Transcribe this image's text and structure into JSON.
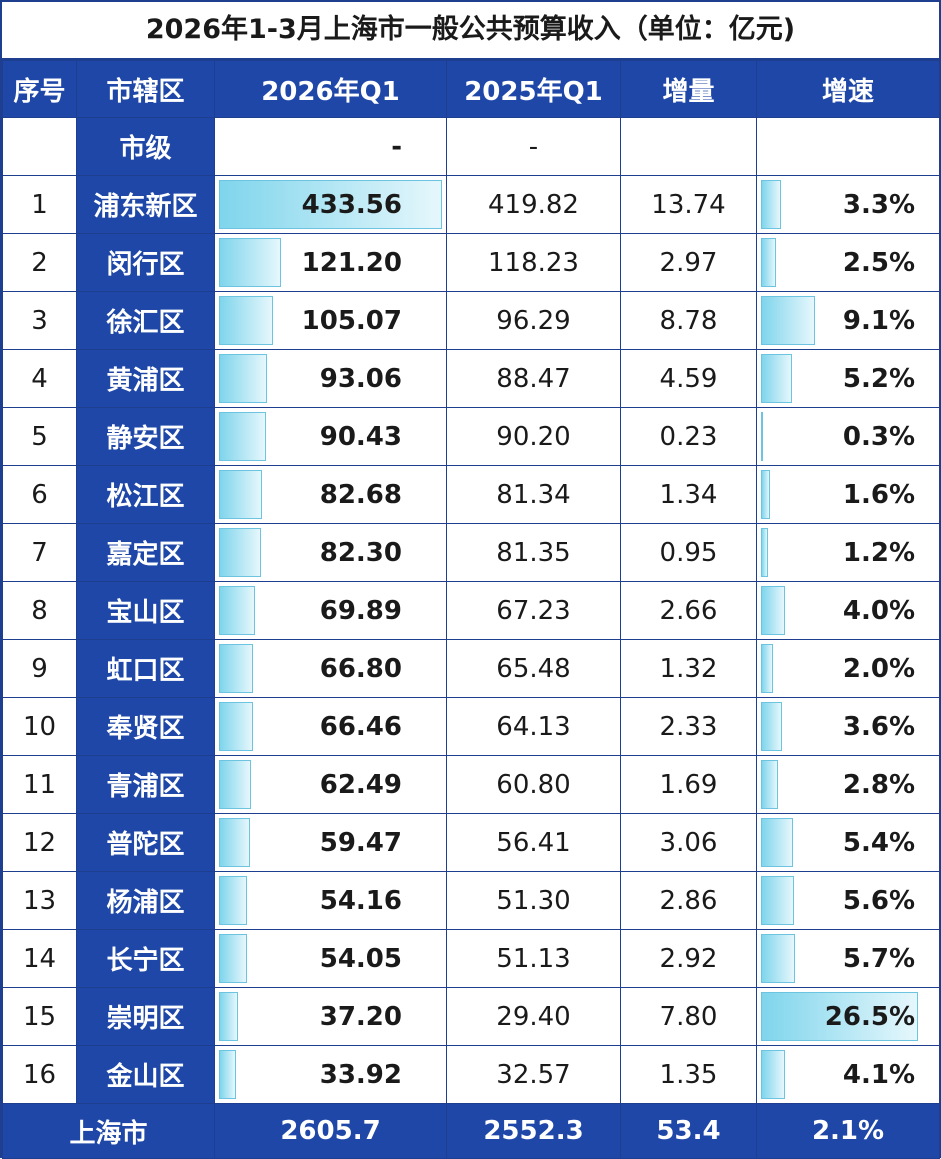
{
  "title": "2026年1-3月上海市一般公共预算收入（单位：亿元)",
  "headers": [
    "序号",
    "市辖区",
    "2026年Q1",
    "2025年Q1",
    "增量",
    "增速"
  ],
  "city_row": {
    "name": "市级",
    "q1_2026": "-",
    "q1_2025": "-"
  },
  "rows": [
    {
      "seq": "1",
      "name": "浦东新区",
      "q1_2026": "433.56",
      "q1_2025": "419.82",
      "increase": "13.74",
      "growth": "3.3%",
      "q1_2026_value": 433.56,
      "growth_value": 3.3
    },
    {
      "seq": "2",
      "name": "闵行区",
      "q1_2026": "121.20",
      "q1_2025": "118.23",
      "increase": "2.97",
      "growth": "2.5%",
      "q1_2026_value": 121.2,
      "growth_value": 2.5
    },
    {
      "seq": "3",
      "name": "徐汇区",
      "q1_2026": "105.07",
      "q1_2025": "96.29",
      "increase": "8.78",
      "growth": "9.1%",
      "q1_2026_value": 105.07,
      "growth_value": 9.1
    },
    {
      "seq": "4",
      "name": "黄浦区",
      "q1_2026": "93.06",
      "q1_2025": "88.47",
      "increase": "4.59",
      "growth": "5.2%",
      "q1_2026_value": 93.06,
      "growth_value": 5.2
    },
    {
      "seq": "5",
      "name": "静安区",
      "q1_2026": "90.43",
      "q1_2025": "90.20",
      "increase": "0.23",
      "growth": "0.3%",
      "q1_2026_value": 90.43,
      "growth_value": 0.3
    },
    {
      "seq": "6",
      "name": "松江区",
      "q1_2026": "82.68",
      "q1_2025": "81.34",
      "increase": "1.34",
      "growth": "1.6%",
      "q1_2026_value": 82.68,
      "growth_value": 1.6
    },
    {
      "seq": "7",
      "name": "嘉定区",
      "q1_2026": "82.30",
      "q1_2025": "81.35",
      "increase": "0.95",
      "growth": "1.2%",
      "q1_2026_value": 82.3,
      "growth_value": 1.2
    },
    {
      "seq": "8",
      "name": "宝山区",
      "q1_2026": "69.89",
      "q1_2025": "67.23",
      "increase": "2.66",
      "growth": "4.0%",
      "q1_2026_value": 69.89,
      "growth_value": 4.0
    },
    {
      "seq": "9",
      "name": "虹口区",
      "q1_2026": "66.80",
      "q1_2025": "65.48",
      "increase": "1.32",
      "growth": "2.0%",
      "q1_2026_value": 66.8,
      "growth_value": 2.0
    },
    {
      "seq": "10",
      "name": "奉贤区",
      "q1_2026": "66.46",
      "q1_2025": "64.13",
      "increase": "2.33",
      "growth": "3.6%",
      "q1_2026_value": 66.46,
      "growth_value": 3.6
    },
    {
      "seq": "11",
      "name": "青浦区",
      "q1_2026": "62.49",
      "q1_2025": "60.80",
      "increase": "1.69",
      "growth": "2.8%",
      "q1_2026_value": 62.49,
      "growth_value": 2.8
    },
    {
      "seq": "12",
      "name": "普陀区",
      "q1_2026": "59.47",
      "q1_2025": "56.41",
      "increase": "3.06",
      "growth": "5.4%",
      "q1_2026_value": 59.47,
      "growth_value": 5.4
    },
    {
      "seq": "13",
      "name": "杨浦区",
      "q1_2026": "54.16",
      "q1_2025": "51.30",
      "increase": "2.86",
      "growth": "5.6%",
      "q1_2026_value": 54.16,
      "growth_value": 5.6
    },
    {
      "seq": "14",
      "name": "长宁区",
      "q1_2026": "54.05",
      "q1_2025": "51.13",
      "increase": "2.92",
      "growth": "5.7%",
      "q1_2026_value": 54.05,
      "growth_value": 5.7
    },
    {
      "seq": "15",
      "name": "崇明区",
      "q1_2026": "37.20",
      "q1_2025": "29.40",
      "increase": "7.80",
      "growth": "26.5%",
      "q1_2026_value": 37.2,
      "growth_value": 26.5
    },
    {
      "seq": "16",
      "name": "金山区",
      "q1_2026": "33.92",
      "q1_2025": "32.57",
      "increase": "1.35",
      "growth": "4.1%",
      "q1_2026_value": 33.92,
      "growth_value": 4.1
    }
  ],
  "total": {
    "name": "上海市",
    "q1_2026": "2605.7",
    "q1_2025": "2552.3",
    "increase": "53.4",
    "growth": "2.1%"
  },
  "colors": {
    "header_bg": "#1e47a8",
    "bar": "#7fd5ec"
  }
}
